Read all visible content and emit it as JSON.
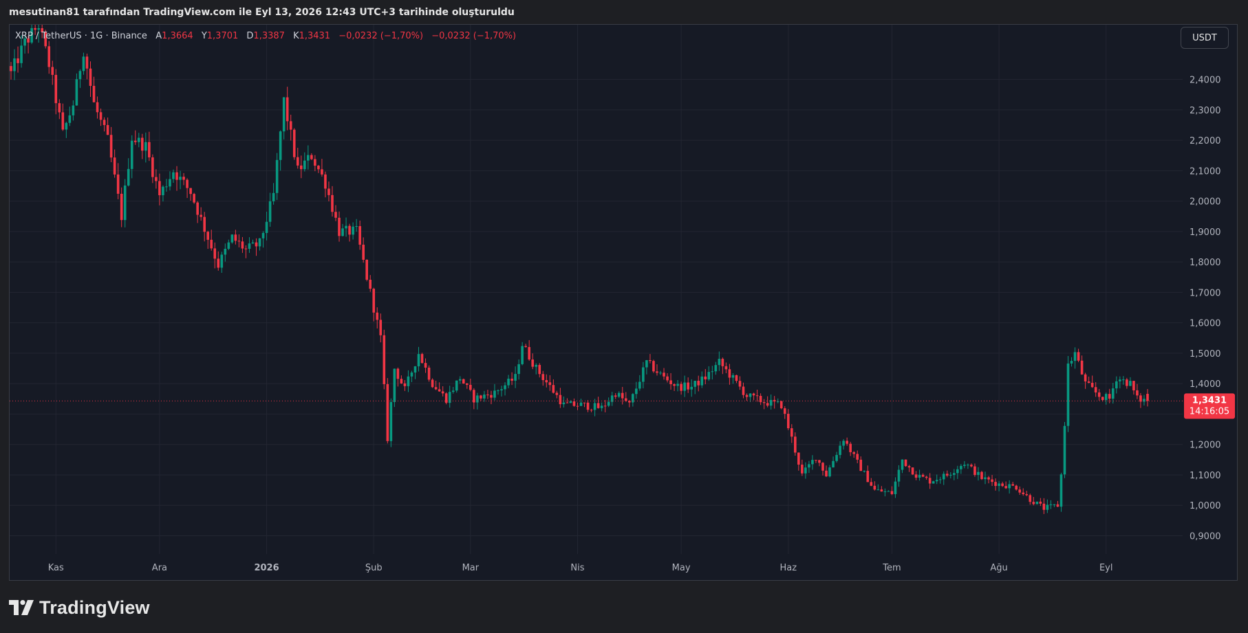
{
  "header": {
    "caption": "mesutinan81 tarafından TradingView.com ile Eyl 13, 2026 12:43 UTC+3 tarihinde oluşturuldu"
  },
  "legend": {
    "symbol": "XRP / TetherUS · 1G · Binance",
    "open_label": "A",
    "open_value": "1,3664",
    "high_label": "Y",
    "high_value": "1,3701",
    "low_label": "D",
    "low_value": "1,3387",
    "close_label": "K",
    "close_value": "1,3431",
    "change_1": "−0,0232 (−1,70%)",
    "change_2": "−0,0232 (−1,70%)"
  },
  "currency_button": {
    "label": "USDT"
  },
  "price_badge": {
    "price": "1,3431",
    "countdown": "14:16:05"
  },
  "footer": {
    "brand": "TradingView"
  },
  "colors": {
    "background": "#161a25",
    "grid": "#232632",
    "up": "#089981",
    "down": "#f23645",
    "axis_text": "#b2b5be"
  },
  "chart_data": {
    "type": "candlestick",
    "title": "XRP / TetherUS · 1G · Binance",
    "y_axis": {
      "position": "right",
      "ticks": [
        0.9,
        1.0,
        1.1,
        1.2,
        1.3,
        1.4,
        1.5,
        1.6,
        1.7,
        1.8,
        1.9,
        2.0,
        2.1,
        2.2,
        2.3,
        2.4
      ],
      "tick_labels": [
        "0,9000",
        "1,0000",
        "1,1000",
        "1,2000",
        "1,3000",
        "1,4000",
        "1,5000",
        "1,6000",
        "1,7000",
        "1,8000",
        "1,9000",
        "2,0000",
        "2,1000",
        "2,2000",
        "2,3000",
        "2,4000"
      ],
      "ylim": [
        0.84,
        2.58
      ]
    },
    "x_axis": {
      "start_date": "2025-10-19",
      "end_date": "2026-09-13",
      "labels": [
        {
          "date": "2025-11-01",
          "label": "Kas"
        },
        {
          "date": "2025-12-01",
          "label": "Ara"
        },
        {
          "date": "2026-01-01",
          "label": "2026"
        },
        {
          "date": "2026-02-01",
          "label": "Şub"
        },
        {
          "date": "2026-03-01",
          "label": "Mar"
        },
        {
          "date": "2026-04-01",
          "label": "Nis"
        },
        {
          "date": "2026-05-01",
          "label": "May"
        },
        {
          "date": "2026-06-01",
          "label": "Haz"
        },
        {
          "date": "2026-07-01",
          "label": "Tem"
        },
        {
          "date": "2026-08-01",
          "label": "Ağu"
        },
        {
          "date": "2026-09-01",
          "label": "Eyl"
        }
      ]
    },
    "last_price": 1.3431,
    "grid": true,
    "series": [
      {
        "name": "XRP / TetherUS",
        "close_path": [
          {
            "date": "2025-10-19",
            "close": 2.42
          },
          {
            "date": "2025-10-23",
            "close": 2.52
          },
          {
            "date": "2025-10-27",
            "close": 2.58
          },
          {
            "date": "2025-10-30",
            "close": 2.45
          },
          {
            "date": "2025-11-03",
            "close": 2.22
          },
          {
            "date": "2025-11-06",
            "close": 2.32
          },
          {
            "date": "2025-11-09",
            "close": 2.5
          },
          {
            "date": "2025-11-12",
            "close": 2.32
          },
          {
            "date": "2025-11-16",
            "close": 2.2
          },
          {
            "date": "2025-11-20",
            "close": 1.95
          },
          {
            "date": "2025-11-23",
            "close": 2.21
          },
          {
            "date": "2025-11-27",
            "close": 2.18
          },
          {
            "date": "2025-12-01",
            "close": 2.02
          },
          {
            "date": "2025-12-05",
            "close": 2.1
          },
          {
            "date": "2025-12-10",
            "close": 2.03
          },
          {
            "date": "2025-12-15",
            "close": 1.88
          },
          {
            "date": "2025-12-18",
            "close": 1.79
          },
          {
            "date": "2025-12-22",
            "close": 1.88
          },
          {
            "date": "2025-12-26",
            "close": 1.84
          },
          {
            "date": "2025-12-30",
            "close": 1.86
          },
          {
            "date": "2026-01-03",
            "close": 2.02
          },
          {
            "date": "2026-01-06",
            "close": 2.33
          },
          {
            "date": "2026-01-10",
            "close": 2.1
          },
          {
            "date": "2026-01-14",
            "close": 2.15
          },
          {
            "date": "2026-01-18",
            "close": 2.06
          },
          {
            "date": "2026-01-22",
            "close": 1.9
          },
          {
            "date": "2026-01-27",
            "close": 1.9
          },
          {
            "date": "2026-01-31",
            "close": 1.7
          },
          {
            "date": "2026-02-03",
            "close": 1.55
          },
          {
            "date": "2026-02-05",
            "close": 1.22
          },
          {
            "date": "2026-02-07",
            "close": 1.45
          },
          {
            "date": "2026-02-10",
            "close": 1.38
          },
          {
            "date": "2026-02-14",
            "close": 1.5
          },
          {
            "date": "2026-02-18",
            "close": 1.4
          },
          {
            "date": "2026-02-22",
            "close": 1.35
          },
          {
            "date": "2026-02-26",
            "close": 1.42
          },
          {
            "date": "2026-03-02",
            "close": 1.35
          },
          {
            "date": "2026-03-08",
            "close": 1.37
          },
          {
            "date": "2026-03-14",
            "close": 1.42
          },
          {
            "date": "2026-03-16",
            "close": 1.53
          },
          {
            "date": "2026-03-20",
            "close": 1.45
          },
          {
            "date": "2026-03-24",
            "close": 1.39
          },
          {
            "date": "2026-03-28",
            "close": 1.33
          },
          {
            "date": "2026-04-02",
            "close": 1.33
          },
          {
            "date": "2026-04-08",
            "close": 1.32
          },
          {
            "date": "2026-04-12",
            "close": 1.37
          },
          {
            "date": "2026-04-16",
            "close": 1.33
          },
          {
            "date": "2026-04-21",
            "close": 1.47
          },
          {
            "date": "2026-04-26",
            "close": 1.42
          },
          {
            "date": "2026-04-30",
            "close": 1.39
          },
          {
            "date": "2026-05-04",
            "close": 1.39
          },
          {
            "date": "2026-05-08",
            "close": 1.42
          },
          {
            "date": "2026-05-12",
            "close": 1.47
          },
          {
            "date": "2026-05-15",
            "close": 1.43
          },
          {
            "date": "2026-05-20",
            "close": 1.36
          },
          {
            "date": "2026-05-25",
            "close": 1.34
          },
          {
            "date": "2026-05-30",
            "close": 1.33
          },
          {
            "date": "2026-06-02",
            "close": 1.22
          },
          {
            "date": "2026-06-05",
            "close": 1.1
          },
          {
            "date": "2026-06-09",
            "close": 1.16
          },
          {
            "date": "2026-06-12",
            "close": 1.1
          },
          {
            "date": "2026-06-17",
            "close": 1.22
          },
          {
            "date": "2026-06-21",
            "close": 1.14
          },
          {
            "date": "2026-06-26",
            "close": 1.05
          },
          {
            "date": "2026-07-01",
            "close": 1.04
          },
          {
            "date": "2026-07-04",
            "close": 1.15
          },
          {
            "date": "2026-07-08",
            "close": 1.1
          },
          {
            "date": "2026-07-12",
            "close": 1.08
          },
          {
            "date": "2026-07-17",
            "close": 1.1
          },
          {
            "date": "2026-07-22",
            "close": 1.14
          },
          {
            "date": "2026-07-27",
            "close": 1.09
          },
          {
            "date": "2026-08-01",
            "close": 1.07
          },
          {
            "date": "2026-08-06",
            "close": 1.06
          },
          {
            "date": "2026-08-10",
            "close": 1.02
          },
          {
            "date": "2026-08-14",
            "close": 0.99
          },
          {
            "date": "2026-08-18",
            "close": 1.0
          },
          {
            "date": "2026-08-19",
            "close": 1.1
          },
          {
            "date": "2026-08-20",
            "close": 1.27
          },
          {
            "date": "2026-08-21",
            "close": 1.46
          },
          {
            "date": "2026-08-23",
            "close": 1.5
          },
          {
            "date": "2026-08-26",
            "close": 1.4
          },
          {
            "date": "2026-08-30",
            "close": 1.36
          },
          {
            "date": "2026-09-02",
            "close": 1.35
          },
          {
            "date": "2026-09-04",
            "close": 1.42
          },
          {
            "date": "2026-09-08",
            "close": 1.4
          },
          {
            "date": "2026-09-10",
            "close": 1.35
          },
          {
            "date": "2026-09-13",
            "close": 1.3431
          }
        ]
      }
    ]
  }
}
